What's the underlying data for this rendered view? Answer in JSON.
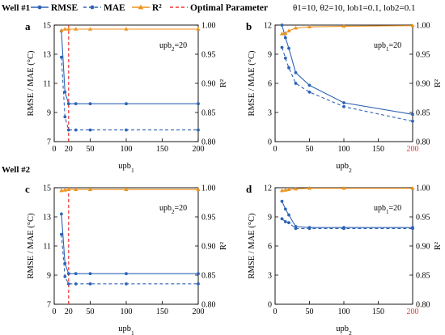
{
  "legend": {
    "items": [
      {
        "label": "RMSE",
        "color": "#2e63b5",
        "dash": "",
        "marker": "circle"
      },
      {
        "label": "MAE",
        "color": "#2e63b5",
        "dash": "4,3",
        "marker": "circle"
      },
      {
        "label": "R²",
        "color": "#f0921e",
        "dash": "",
        "marker": "triangle"
      },
      {
        "label": "Optimal Parameter",
        "color": "#ee3333",
        "dash": "4,3",
        "marker": "none"
      }
    ]
  },
  "params_text": "θ1=10, θ2=10, lob1=0.1, lob2=0.1",
  "wells": [
    "Well #1",
    "Well #2"
  ],
  "chart_data": [
    {
      "id": "a",
      "type": "line",
      "panel": "a",
      "xlabel": "upb1",
      "ylabel_left": "RMSE / MAE (°C)",
      "ylabel_right": "R²",
      "annotation": "upb2=20",
      "x": [
        10,
        15,
        20,
        30,
        50,
        100,
        200
      ],
      "xlim": [
        0,
        200
      ],
      "xticks": [
        0,
        20,
        50,
        100,
        150,
        200
      ],
      "highlight_xtick": null,
      "ylim_left": [
        7,
        15
      ],
      "yticks_left": [
        7,
        9,
        11,
        13,
        15
      ],
      "ylim_right": [
        0.8,
        1.0
      ],
      "yticks_right": [
        "0.80",
        "0.85",
        "0.90",
        "0.95",
        "1.00"
      ],
      "optimal_x": 20,
      "series": [
        {
          "name": "RMSE",
          "axis": "left",
          "values": [
            14.6,
            10.4,
            9.6,
            9.6,
            9.6,
            9.6,
            9.6
          ]
        },
        {
          "name": "MAE",
          "axis": "left",
          "values": [
            12.8,
            8.7,
            7.8,
            7.8,
            7.8,
            7.8,
            7.8
          ]
        },
        {
          "name": "R²",
          "axis": "right",
          "values": [
            0.991,
            0.993,
            0.993,
            0.993,
            0.993,
            0.993,
            0.993
          ]
        }
      ]
    },
    {
      "id": "b",
      "type": "line",
      "panel": "b",
      "xlabel": "upb2",
      "ylabel_left": "RMSE / MAE (°C)",
      "ylabel_right": "R²",
      "annotation": "upb1=20",
      "x": [
        10,
        15,
        20,
        30,
        50,
        100,
        200
      ],
      "xlim": [
        0,
        200
      ],
      "xticks": [
        0,
        50,
        100,
        150,
        200
      ],
      "highlight_xtick": 200,
      "ylim_left": [
        0,
        12
      ],
      "yticks_left": [
        0,
        3,
        6,
        9,
        12
      ],
      "ylim_right": [
        0.8,
        1.0
      ],
      "yticks_right": [
        "0.80",
        "0.85",
        "0.90",
        "0.95",
        "1.00"
      ],
      "optimal_x": null,
      "series": [
        {
          "name": "RMSE",
          "axis": "left",
          "values": [
            12.0,
            10.7,
            9.6,
            7.1,
            5.8,
            4.0,
            2.8
          ]
        },
        {
          "name": "MAE",
          "axis": "left",
          "values": [
            9.7,
            8.6,
            7.6,
            6.0,
            5.1,
            3.6,
            2.1
          ]
        },
        {
          "name": "R²",
          "axis": "right",
          "values": [
            0.985,
            0.986,
            0.99,
            0.995,
            0.997,
            0.998,
            0.999
          ]
        }
      ]
    },
    {
      "id": "c",
      "type": "line",
      "panel": "c",
      "xlabel": "upb1",
      "ylabel_left": "RMSE / MAE (°C)",
      "ylabel_right": "R²",
      "annotation": "upb2=20",
      "x": [
        10,
        15,
        20,
        30,
        50,
        100,
        200
      ],
      "xlim": [
        0,
        200
      ],
      "xticks": [
        0,
        20,
        50,
        100,
        150,
        200
      ],
      "highlight_xtick": null,
      "ylim_left": [
        7,
        15
      ],
      "yticks_left": [
        7,
        9,
        11,
        13,
        15
      ],
      "ylim_right": [
        0.8,
        1.0
      ],
      "yticks_right": [
        "0.80",
        "0.85",
        "0.90",
        "0.95",
        "1.00"
      ],
      "optimal_x": 20,
      "series": [
        {
          "name": "RMSE",
          "axis": "left",
          "values": [
            13.2,
            9.8,
            9.1,
            9.1,
            9.1,
            9.1,
            9.1
          ]
        },
        {
          "name": "MAE",
          "axis": "left",
          "values": [
            11.8,
            8.9,
            8.4,
            8.4,
            8.4,
            8.4,
            8.4
          ]
        },
        {
          "name": "R²",
          "axis": "right",
          "values": [
            0.995,
            0.996,
            0.997,
            0.997,
            0.997,
            0.997,
            0.997
          ]
        }
      ]
    },
    {
      "id": "d",
      "type": "line",
      "panel": "d",
      "xlabel": "upb2",
      "ylabel_left": "RMSE / MAE (°C)",
      "ylabel_right": "R²",
      "annotation": "upb1=20",
      "x": [
        10,
        15,
        20,
        30,
        50,
        100,
        200
      ],
      "xlim": [
        0,
        200
      ],
      "xticks": [
        0,
        50,
        100,
        150,
        200
      ],
      "highlight_xtick": 200,
      "ylim_left": [
        0,
        12
      ],
      "yticks_left": [
        0,
        3,
        6,
        9,
        12
      ],
      "ylim_right": [
        0.8,
        1.0
      ],
      "yticks_right": [
        "0.80",
        "0.85",
        "0.90",
        "0.95",
        "1.00"
      ],
      "optimal_x": null,
      "series": [
        {
          "name": "RMSE",
          "axis": "left",
          "values": [
            10.6,
            9.8,
            9.2,
            8.0,
            7.9,
            7.9,
            7.9
          ]
        },
        {
          "name": "MAE",
          "axis": "left",
          "values": [
            8.8,
            8.5,
            8.4,
            7.8,
            7.8,
            7.8,
            7.8
          ]
        },
        {
          "name": "R²",
          "axis": "right",
          "values": [
            0.995,
            0.996,
            0.997,
            0.998,
            0.999,
            0.999,
            0.999
          ]
        }
      ]
    }
  ]
}
